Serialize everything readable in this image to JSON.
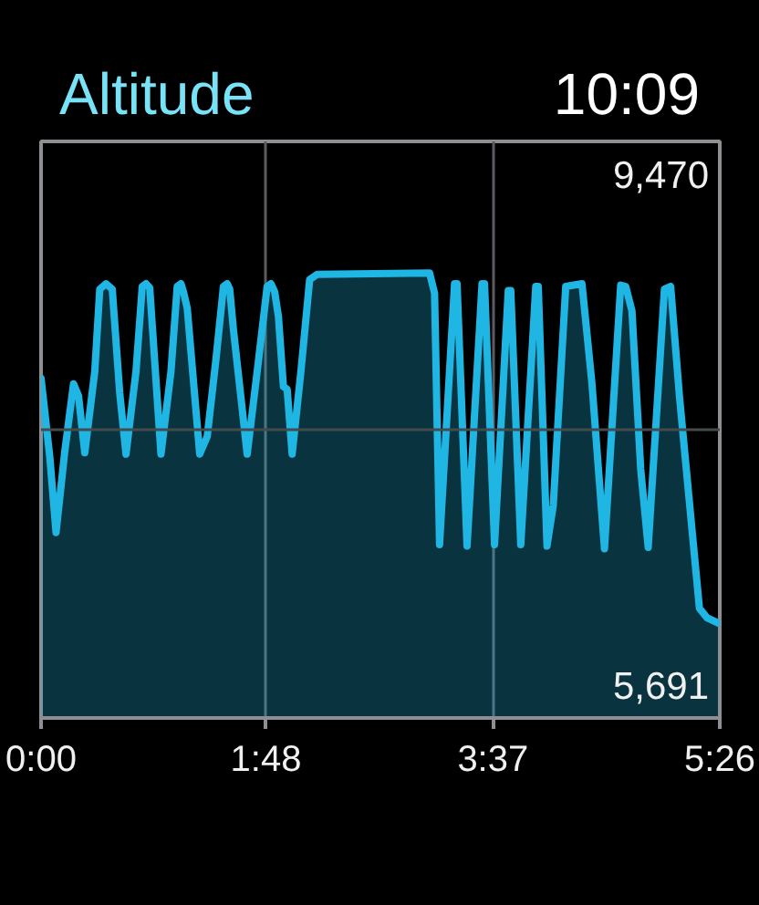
{
  "chart_data": {
    "type": "area",
    "title": "Altitude",
    "annotations": [
      "10:09"
    ],
    "x": [
      0.0,
      0.07,
      0.12,
      0.19,
      0.26,
      0.3,
      0.35,
      0.43,
      0.47,
      0.52,
      0.57,
      0.63,
      0.68,
      0.76,
      0.81,
      0.84,
      0.87,
      0.96,
      1.04,
      1.09,
      1.12,
      1.14,
      1.17,
      1.27,
      1.33,
      1.4,
      1.46,
      1.49,
      1.51,
      1.54,
      1.65,
      1.73,
      1.81,
      1.84,
      1.87,
      1.9,
      1.94,
      1.97,
      2.01,
      2.08,
      2.15,
      2.21,
      3.11,
      3.15,
      3.19,
      3.31,
      3.33,
      3.41,
      3.53,
      3.55,
      3.63,
      3.74,
      3.76,
      3.84,
      3.96,
      3.98,
      4.05,
      4.1,
      4.2,
      4.33,
      4.41,
      4.51,
      4.64,
      4.68,
      4.73,
      4.8,
      4.86,
      4.99,
      5.04,
      5.11,
      5.22,
      5.27,
      5.33,
      5.42
    ],
    "series": [
      {
        "color": "#1fb6e4",
        "values": [
          7960,
          7380,
          6820,
          7420,
          7920,
          7830,
          7410,
          8010,
          8620,
          8660,
          8620,
          7850,
          7400,
          8010,
          8640,
          8660,
          8630,
          7400,
          8010,
          8640,
          8660,
          8600,
          8480,
          7400,
          7530,
          8100,
          8640,
          8660,
          8620,
          8320,
          7400,
          8010,
          8640,
          8660,
          8600,
          8420,
          7900,
          7880,
          7400,
          8010,
          8690,
          8730,
          8740,
          8590,
          6730,
          8660,
          8660,
          6720,
          8660,
          8660,
          6730,
          8610,
          8610,
          6730,
          8640,
          8640,
          6720,
          7020,
          8640,
          8660,
          7920,
          6700,
          8650,
          8640,
          8460,
          7290,
          6710,
          8620,
          8640,
          7830,
          6750,
          6260,
          6190,
          6150
        ]
      }
    ],
    "xlim": [
      0,
      5.433
    ],
    "xticks": [
      {
        "value": 0,
        "label": "0:00"
      },
      {
        "value": 1.8,
        "label": "1:48"
      },
      {
        "value": 3.617,
        "label": "3:37"
      },
      {
        "value": 5.433,
        "label": "5:26"
      }
    ],
    "ylim": [
      5448,
      9713
    ],
    "yticks": [
      {
        "value": 9470,
        "label": "9,470"
      },
      {
        "value": 5691,
        "label": "5,691"
      }
    ],
    "grid": "x",
    "ref_lines": [
      {
        "axis": "y",
        "value": 7580,
        "label": null,
        "color": "#454b4d"
      }
    ]
  }
}
